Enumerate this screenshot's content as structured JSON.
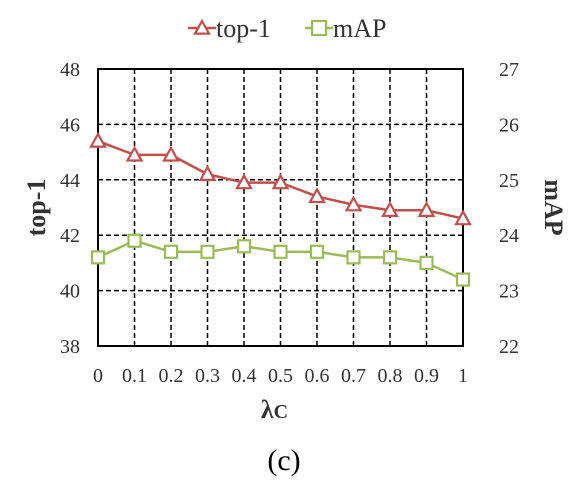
{
  "chart_data": {
    "type": "line",
    "x": [
      0,
      0.1,
      0.2,
      0.3,
      0.4,
      0.5,
      0.6,
      0.7,
      0.8,
      0.9,
      1
    ],
    "xtick_labels": [
      "0",
      "0.1",
      "0.2",
      "0.3",
      "0.4",
      "0.5",
      "0.6",
      "0.7",
      "0.8",
      "0.9",
      "1"
    ],
    "xlabel_main": "λ",
    "xlabel_sub": "C",
    "ylabel_left": "top-1",
    "ylabel_right": "mAP",
    "ylim_left": [
      38,
      48
    ],
    "ylim_right": [
      22,
      27
    ],
    "yticks_left": [
      "38",
      "40",
      "42",
      "44",
      "46",
      "48"
    ],
    "yticks_right": [
      "22",
      "23",
      "24",
      "25",
      "26",
      "27"
    ],
    "grid": true,
    "legend_position": "top-center",
    "series": [
      {
        "name": "top-1",
        "axis": "left",
        "marker": "triangle",
        "color": "#c0504d",
        "values": [
          45.4,
          44.9,
          44.9,
          44.2,
          43.9,
          43.9,
          43.4,
          43.1,
          42.9,
          42.9,
          42.6
        ]
      },
      {
        "name": "mAP",
        "axis": "right",
        "marker": "square",
        "color": "#9bbb59",
        "values": [
          23.6,
          23.9,
          23.7,
          23.7,
          23.8,
          23.7,
          23.7,
          23.6,
          23.6,
          23.5,
          23.2
        ]
      }
    ]
  },
  "caption": "(c)"
}
